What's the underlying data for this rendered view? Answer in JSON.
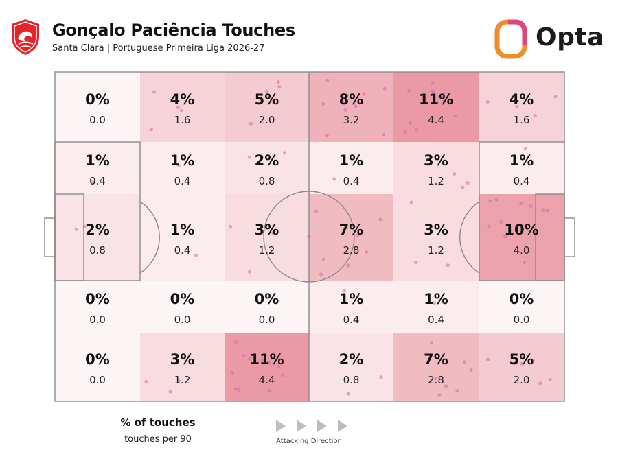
{
  "header": {
    "title": "Gonçalo Paciência Touches",
    "subtitle": "Santa Clara | Portuguese Primeira Liga 2026-27",
    "brand": "Opta",
    "crest_icon": "santa-clara-crest-icon",
    "brand_icon": "opta-logo-icon"
  },
  "colors": {
    "heat_base": "#d94a5e",
    "dot": "#d966b3",
    "pitch_line": "#8a8a8a",
    "opta_orange": "#f28c28",
    "opta_pink": "#e0457b"
  },
  "chart_data": {
    "type": "heatmap",
    "title": "Gonçalo Paciência Touches",
    "subtitle": "Santa Clara | Portuguese Primeira Liga 2026-27",
    "rows": 5,
    "cols": 6,
    "grid": [
      [
        {
          "pct": "0%",
          "p90": "0.0"
        },
        {
          "pct": "4%",
          "p90": "1.6"
        },
        {
          "pct": "5%",
          "p90": "2.0"
        },
        {
          "pct": "8%",
          "p90": "3.2"
        },
        {
          "pct": "11%",
          "p90": "4.4"
        },
        {
          "pct": "4%",
          "p90": "1.6"
        }
      ],
      [
        {
          "pct": "1%",
          "p90": "0.4"
        },
        {
          "pct": "1%",
          "p90": "0.4"
        },
        {
          "pct": "2%",
          "p90": "0.8"
        },
        {
          "pct": "1%",
          "p90": "0.4"
        },
        {
          "pct": "3%",
          "p90": "1.2"
        },
        {
          "pct": "1%",
          "p90": "0.4"
        }
      ],
      [
        {
          "pct": "2%",
          "p90": "0.8"
        },
        {
          "pct": "1%",
          "p90": "0.4"
        },
        {
          "pct": "3%",
          "p90": "1.2"
        },
        {
          "pct": "7%",
          "p90": "2.8"
        },
        {
          "pct": "3%",
          "p90": "1.2"
        },
        {
          "pct": "10%",
          "p90": "4.0"
        }
      ],
      [
        {
          "pct": "0%",
          "p90": "0.0"
        },
        {
          "pct": "0%",
          "p90": "0.0"
        },
        {
          "pct": "0%",
          "p90": "0.0"
        },
        {
          "pct": "1%",
          "p90": "0.4"
        },
        {
          "pct": "1%",
          "p90": "0.4"
        },
        {
          "pct": "0%",
          "p90": "0.0"
        }
      ],
      [
        {
          "pct": "0%",
          "p90": "0.0"
        },
        {
          "pct": "3%",
          "p90": "1.2"
        },
        {
          "pct": "11%",
          "p90": "4.4"
        },
        {
          "pct": "2%",
          "p90": "0.8"
        },
        {
          "pct": "7%",
          "p90": "2.8"
        },
        {
          "pct": "5%",
          "p90": "2.0"
        }
      ]
    ],
    "touch_counts": [
      [
        0,
        4,
        5,
        8,
        11,
        4
      ],
      [
        1,
        1,
        2,
        1,
        3,
        1
      ],
      [
        2,
        1,
        3,
        7,
        3,
        10
      ],
      [
        0,
        0,
        0,
        1,
        1,
        0
      ],
      [
        0,
        3,
        11,
        2,
        7,
        5
      ]
    ],
    "legend": {
      "primary": "% of touches",
      "secondary": "touches per 90",
      "direction": "Attacking Direction"
    }
  }
}
